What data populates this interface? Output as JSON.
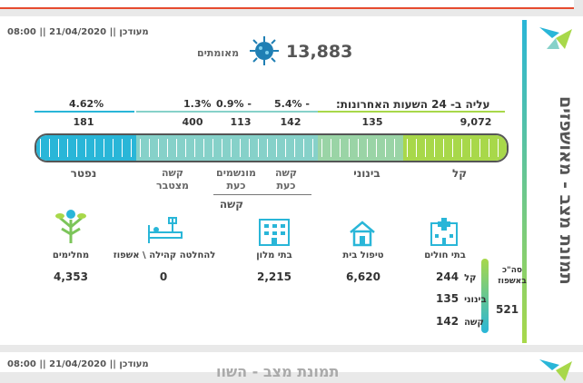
{
  "updated": "מעודכן || 21/04/2020 || 08:00",
  "sidebar_title": "תמונת מצב - מאושפזים",
  "confirmed": {
    "value": "13,883",
    "label": "מאומתים"
  },
  "rise": {
    "title": "עליה ב- 24 השעות האחרונות:"
  },
  "percents": [
    "4.62%",
    "1.3%",
    "0.9% -",
    "5.4% -"
  ],
  "counts": [
    "181",
    "400",
    "113",
    "142",
    "135",
    "9,072"
  ],
  "categories": {
    "mild": "קל",
    "moderate": "בינוני",
    "dead": "נפטר",
    "severe_now": "קשה\nכעת",
    "ventilated": "מונשמים\nכעת",
    "severe_cum": "קשה\nמצטבר",
    "severe_group": "קשה"
  },
  "locations": [
    {
      "label": "מחלימים",
      "value": "4,353",
      "icon": "recovered-tree-icon"
    },
    {
      "label": "להחלטה קהילה \\ אשפוז",
      "value": "0",
      "icon": "hospital-bed-icon"
    },
    {
      "label": "בתי מלון",
      "value": "2,215",
      "icon": "hotel-icon"
    },
    {
      "label": "טיפול בית",
      "value": "6,620",
      "icon": "house-icon"
    },
    {
      "label": "בתי חולים",
      "value": "",
      "icon": "hospital-icon"
    }
  ],
  "hospital": {
    "title": "סה\"כ באשפוז",
    "total": "521",
    "rows": [
      {
        "label": "קל",
        "value": "244"
      },
      {
        "label": "בינוני",
        "value": "135"
      },
      {
        "label": "קשה",
        "value": "142"
      }
    ]
  },
  "bottom": {
    "updated": "מעודכן || 21/04/2020 || 08:00",
    "ghost_title": "תמונת מצב - השוו"
  },
  "colors": {
    "blue": "#29b6d8",
    "teal": "#86d1c9",
    "green": "#a8d84a",
    "mid": "#9ad4a6"
  }
}
